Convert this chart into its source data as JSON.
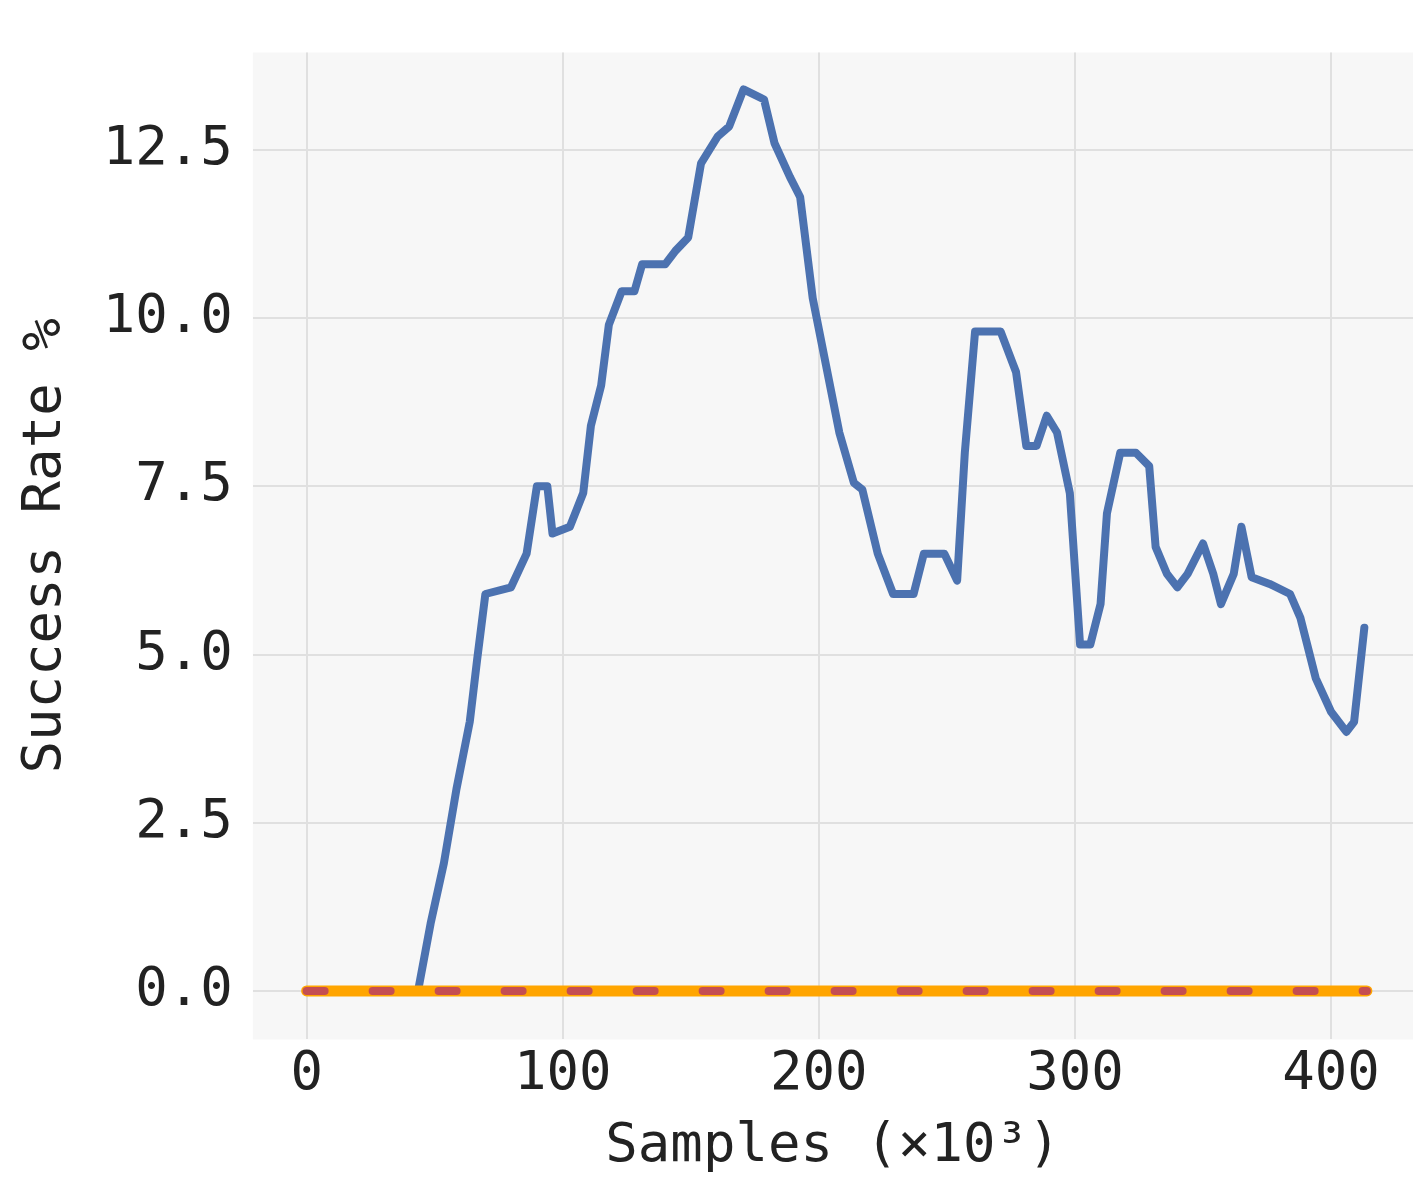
{
  "chart_data": {
    "type": "line",
    "xlabel": "Samples (×10³)",
    "ylabel": "Success Rate %",
    "xlim": [
      -21,
      432
    ],
    "xticks": [
      0,
      100,
      200,
      300,
      400
    ],
    "ylim": [
      -0.72,
      13.95
    ],
    "yticks": [
      {
        "value": 0,
        "label": "0.0"
      },
      {
        "value": 2.5,
        "label": "2.5"
      },
      {
        "value": 5,
        "label": "5.0"
      },
      {
        "value": 7.5,
        "label": "7.5"
      },
      {
        "value": 10,
        "label": "10.0"
      },
      {
        "value": 12.5,
        "label": "12.5"
      }
    ],
    "grid": true,
    "legend": false,
    "marker": "none",
    "series": [
      {
        "color": "#4c72b0",
        "line_style": "solid",
        "x": [
          43.5,
          48.4,
          53.6,
          58.5,
          63.7,
          66.5,
          69.8,
          79.8,
          85.9,
          89.9,
          94,
          96,
          102.8,
          108,
          111,
          115,
          118,
          123,
          128,
          131,
          140,
          144,
          149,
          154,
          160.5,
          165,
          170.6,
          178.6,
          182.7,
          188.7,
          192.7,
          197.6,
          202.8,
          208,
          213.7,
          217,
          223,
          229,
          237,
          241,
          249,
          254,
          257,
          261,
          271,
          277,
          281,
          285,
          289,
          293,
          298,
          302,
          306,
          310,
          312.5,
          317.7,
          323.8,
          329,
          331.5,
          335.9,
          340,
          344,
          350,
          354,
          357,
          362,
          365,
          369,
          376,
          384,
          388,
          394,
          400,
          406,
          409,
          413
        ],
        "values": [
          0,
          1,
          1.9,
          3,
          4,
          4.9,
          5.9,
          6,
          6.5,
          7.5,
          7.5,
          6.8,
          6.9,
          7.4,
          8.4,
          9,
          9.9,
          10.4,
          10.4,
          10.8,
          10.8,
          11,
          11.2,
          12.3,
          12.7,
          12.85,
          13.4,
          13.25,
          12.6,
          12.1,
          11.8,
          10.3,
          9.3,
          8.3,
          7.55,
          7.45,
          6.5,
          5.9,
          5.9,
          6.5,
          6.5,
          6.1,
          8,
          9.8,
          9.8,
          9.2,
          8.1,
          8.1,
          8.55,
          8.3,
          7.4,
          5.15,
          5.15,
          5.75,
          7.1,
          8,
          8,
          7.8,
          6.6,
          6.2,
          6,
          6.2,
          6.65,
          6.2,
          5.75,
          6.2,
          6.9,
          6.15,
          6.05,
          5.9,
          5.55,
          4.65,
          4.15,
          3.85,
          4,
          5.4
        ]
      },
      {
        "color": "#ffa500",
        "line_style": "solid",
        "x": [
          0,
          414
        ],
        "values": [
          0,
          0
        ]
      },
      {
        "color": "#c44e52",
        "line_style": "dashed",
        "x": [
          0,
          414
        ],
        "values": [
          0,
          0
        ]
      }
    ]
  }
}
